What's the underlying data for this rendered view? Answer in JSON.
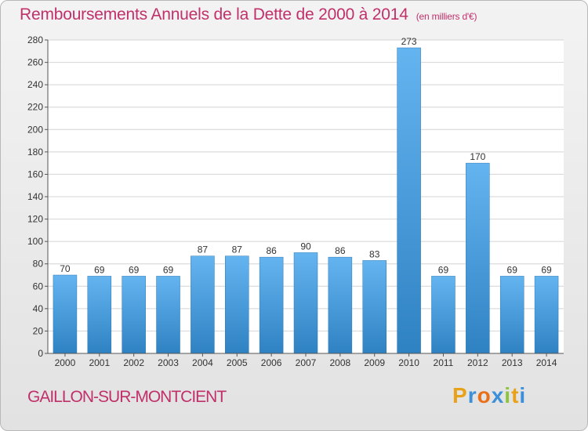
{
  "header": {
    "title": "Remboursements Annuels de la Dette de 2000 à 2014",
    "unit": "(en milliers d'€)"
  },
  "footer": {
    "commune": "GAILLON-SUR-MONTCIENT",
    "logo": {
      "letters": [
        "P",
        "r",
        "o",
        "x",
        "i",
        "t",
        "i"
      ],
      "colors": [
        "#e8a21a",
        "#3c8fd8",
        "#e8701a",
        "#3c8fd8",
        "#8cc43c",
        "#e8a21a",
        "#3c8fd8"
      ]
    }
  },
  "colors": {
    "accent": "#c0306a",
    "bar_light": "#64b4f0",
    "bar_dark": "#2f82c2"
  },
  "chart_data": {
    "type": "bar",
    "title": "Remboursements Annuels de la Dette de 2000 à 2014",
    "categories": [
      "2000",
      "2001",
      "2002",
      "2003",
      "2004",
      "2005",
      "2006",
      "2007",
      "2008",
      "2009",
      "2010",
      "2011",
      "2012",
      "2013",
      "2014"
    ],
    "values": [
      70,
      69,
      69,
      69,
      87,
      87,
      86,
      90,
      86,
      83,
      273,
      69,
      170,
      69,
      69
    ],
    "ylim": [
      0,
      280
    ],
    "yticks": [
      0,
      20,
      40,
      60,
      80,
      100,
      120,
      140,
      160,
      180,
      200,
      220,
      240,
      260,
      280
    ],
    "grid": true,
    "data_labels": true
  }
}
